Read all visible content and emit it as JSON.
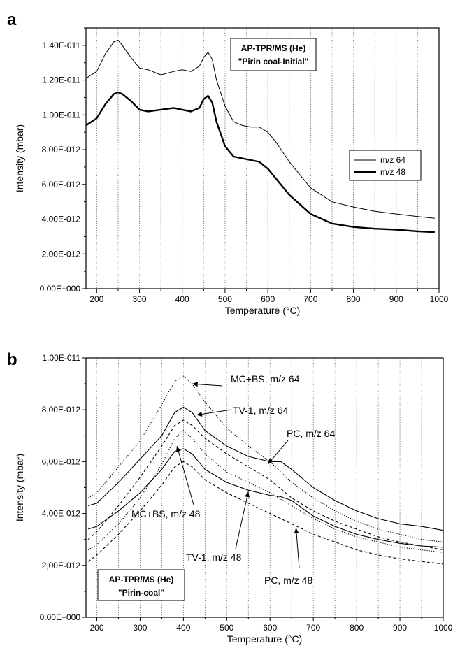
{
  "chart_data": [
    {
      "panel": "a",
      "type": "line",
      "xlabel": "Temperature (°C)",
      "ylabel": "Intensity (mbar)",
      "xlim": [
        175,
        1000
      ],
      "ylim": [
        0,
        1.5e-11
      ],
      "xticks": [
        200,
        300,
        400,
        500,
        600,
        700,
        800,
        900,
        1000
      ],
      "yticks": [
        {
          "v": 0,
          "label": "0.00E+000"
        },
        {
          "v": 2e-12,
          "label": "2.00E-012"
        },
        {
          "v": 4e-12,
          "label": "4.00E-012"
        },
        {
          "v": 6e-12,
          "label": "6.00E-012"
        },
        {
          "v": 8e-12,
          "label": "8.00E-012"
        },
        {
          "v": 1e-11,
          "label": "1.00E-011"
        },
        {
          "v": 1.2e-11,
          "label": "1.20E-011"
        },
        {
          "v": 1.4e-11,
          "label": "1.40E-011"
        }
      ],
      "grid": "vertical dotted every 50",
      "box_lines": [
        "AP-TPR/MS (He)",
        "\"Pirin coal-Initial\""
      ],
      "legend": "right",
      "series": [
        {
          "name": "m/z 64",
          "style": "thin",
          "x": [
            175,
            200,
            220,
            240,
            250,
            260,
            280,
            300,
            320,
            350,
            380,
            400,
            420,
            440,
            450,
            460,
            470,
            480,
            500,
            520,
            540,
            560,
            580,
            600,
            620,
            650,
            700,
            750,
            800,
            850,
            900,
            950,
            990
          ],
          "y": [
            1.21e-11,
            1.25e-11,
            1.35e-11,
            1.42e-11,
            1.43e-11,
            1.4e-11,
            1.33e-11,
            1.27e-11,
            1.26e-11,
            1.23e-11,
            1.25e-11,
            1.26e-11,
            1.25e-11,
            1.28e-11,
            1.33e-11,
            1.36e-11,
            1.32e-11,
            1.2e-11,
            1.05e-11,
            9.6e-12,
            9.4e-12,
            9.3e-12,
            9.3e-12,
            9e-12,
            8.4e-12,
            7.3e-12,
            5.8e-12,
            5e-12,
            4.7e-12,
            4.45e-12,
            4.3e-12,
            4.15e-12,
            4.05e-12
          ]
        },
        {
          "name": "m/z 48",
          "style": "thick",
          "x": [
            175,
            200,
            220,
            240,
            250,
            260,
            280,
            300,
            320,
            350,
            380,
            400,
            420,
            440,
            450,
            460,
            470,
            480,
            500,
            520,
            540,
            560,
            580,
            600,
            620,
            650,
            700,
            750,
            800,
            850,
            900,
            950,
            990
          ],
          "y": [
            9.4e-12,
            9.8e-12,
            1.06e-11,
            1.12e-11,
            1.13e-11,
            1.12e-11,
            1.08e-11,
            1.03e-11,
            1.02e-11,
            1.03e-11,
            1.04e-11,
            1.03e-11,
            1.02e-11,
            1.04e-11,
            1.09e-11,
            1.11e-11,
            1.07e-11,
            9.6e-12,
            8.2e-12,
            7.6e-12,
            7.5e-12,
            7.4e-12,
            7.3e-12,
            6.9e-12,
            6.3e-12,
            5.4e-12,
            4.3e-12,
            3.75e-12,
            3.55e-12,
            3.45e-12,
            3.4e-12,
            3.3e-12,
            3.25e-12
          ]
        }
      ]
    },
    {
      "panel": "b",
      "type": "line",
      "xlabel": "Temperature (°C)",
      "ylabel": "Intensity (mbar)",
      "xlim": [
        175,
        1000
      ],
      "ylim": [
        0,
        1e-11
      ],
      "xticks": [
        200,
        300,
        400,
        500,
        600,
        700,
        800,
        900,
        1000
      ],
      "yticks": [
        {
          "v": 0,
          "label": "0.00E+000"
        },
        {
          "v": 2e-12,
          "label": "2,00E-012"
        },
        {
          "v": 4e-12,
          "label": "4,00E-012"
        },
        {
          "v": 6e-12,
          "label": "6,00E-012"
        },
        {
          "v": 8e-12,
          "label": "8.00E-012"
        },
        {
          "v": 1e-11,
          "label": "1.00E-011"
        }
      ],
      "grid": "vertical dotted every 50",
      "box_lines": [
        "AP-TPR/MS (He)",
        "\"Pirin-coal\""
      ],
      "annotations": [
        "MC+BS, m/z 64",
        "TV-1, m/z 64",
        "PC, m/z 64",
        "MC+BS, m/z 48",
        "TV-1, m/z 48",
        "PC, m/z 48"
      ],
      "series": [
        {
          "name": "MC+BS, m/z 64",
          "style": "dotted",
          "x": [
            180,
            200,
            250,
            300,
            350,
            380,
            400,
            420,
            450,
            500,
            550,
            600,
            650,
            700,
            750,
            800,
            850,
            900,
            950,
            1000
          ],
          "y": [
            4.6e-12,
            4.8e-12,
            5.8e-12,
            6.8e-12,
            8.2e-12,
            9.1e-12,
            9.3e-12,
            9e-12,
            8.3e-12,
            7.3e-12,
            6.6e-12,
            6e-12,
            5.2e-12,
            4.6e-12,
            4.1e-12,
            3.7e-12,
            3.4e-12,
            3.2e-12,
            3e-12,
            2.9e-12
          ]
        },
        {
          "name": "TV-1, m/z 64",
          "style": "solid",
          "x": [
            180,
            200,
            250,
            300,
            350,
            380,
            400,
            420,
            450,
            500,
            550,
            600,
            625,
            650,
            700,
            750,
            800,
            850,
            900,
            950,
            1000
          ],
          "y": [
            4.3e-12,
            4.4e-12,
            5.2e-12,
            6.1e-12,
            7e-12,
            7.9e-12,
            8.1e-12,
            7.9e-12,
            7.2e-12,
            6.6e-12,
            6.2e-12,
            6e-12,
            6e-12,
            5.7e-12,
            5e-12,
            4.5e-12,
            4.1e-12,
            3.8e-12,
            3.6e-12,
            3.5e-12,
            3.35e-12
          ]
        },
        {
          "name": "PC, m/z 64",
          "style": "dashed",
          "x": [
            180,
            200,
            250,
            300,
            350,
            380,
            400,
            420,
            450,
            500,
            550,
            600,
            650,
            700,
            750,
            800,
            850,
            900,
            950,
            1000
          ],
          "y": [
            3e-12,
            3.3e-12,
            4.3e-12,
            5.4e-12,
            6.6e-12,
            7.4e-12,
            7.6e-12,
            7.4e-12,
            6.9e-12,
            6.3e-12,
            5.8e-12,
            5.3e-12,
            4.6e-12,
            4.1e-12,
            3.7e-12,
            3.4e-12,
            3.1e-12,
            2.9e-12,
            2.75e-12,
            2.6e-12
          ]
        },
        {
          "name": "MC+BS, m/z 48",
          "style": "dotted",
          "x": [
            180,
            200,
            250,
            300,
            350,
            380,
            400,
            420,
            450,
            500,
            550,
            600,
            650,
            700,
            750,
            800,
            850,
            900,
            950,
            1000
          ],
          "y": [
            2.6e-12,
            2.8e-12,
            3.6e-12,
            4.6e-12,
            5.9e-12,
            6.9e-12,
            7.2e-12,
            6.9e-12,
            6.3e-12,
            5.6e-12,
            5.2e-12,
            4.8e-12,
            4.3e-12,
            3.8e-12,
            3.4e-12,
            3.1e-12,
            2.9e-12,
            2.7e-12,
            2.6e-12,
            2.5e-12
          ]
        },
        {
          "name": "TV-1, m/z 48",
          "style": "solid",
          "x": [
            180,
            200,
            250,
            300,
            350,
            380,
            400,
            420,
            450,
            500,
            550,
            600,
            625,
            650,
            700,
            750,
            800,
            850,
            900,
            950,
            1000
          ],
          "y": [
            3.4e-12,
            3.5e-12,
            4.1e-12,
            4.8e-12,
            5.7e-12,
            6.4e-12,
            6.5e-12,
            6.3e-12,
            5.7e-12,
            5.2e-12,
            4.9e-12,
            4.7e-12,
            4.65e-12,
            4.5e-12,
            3.9e-12,
            3.5e-12,
            3.2e-12,
            3e-12,
            2.85e-12,
            2.75e-12,
            2.7e-12
          ]
        },
        {
          "name": "PC, m/z 48",
          "style": "dashed",
          "x": [
            180,
            200,
            250,
            300,
            350,
            380,
            400,
            420,
            450,
            500,
            550,
            600,
            650,
            700,
            750,
            800,
            850,
            900,
            950,
            1000
          ],
          "y": [
            2.15e-12,
            2.4e-12,
            3.2e-12,
            4.1e-12,
            5.1e-12,
            5.8e-12,
            6e-12,
            5.8e-12,
            5.3e-12,
            4.8e-12,
            4.4e-12,
            4e-12,
            3.6e-12,
            3.2e-12,
            2.9e-12,
            2.6e-12,
            2.4e-12,
            2.25e-12,
            2.15e-12,
            2.05e-12
          ]
        }
      ]
    }
  ]
}
